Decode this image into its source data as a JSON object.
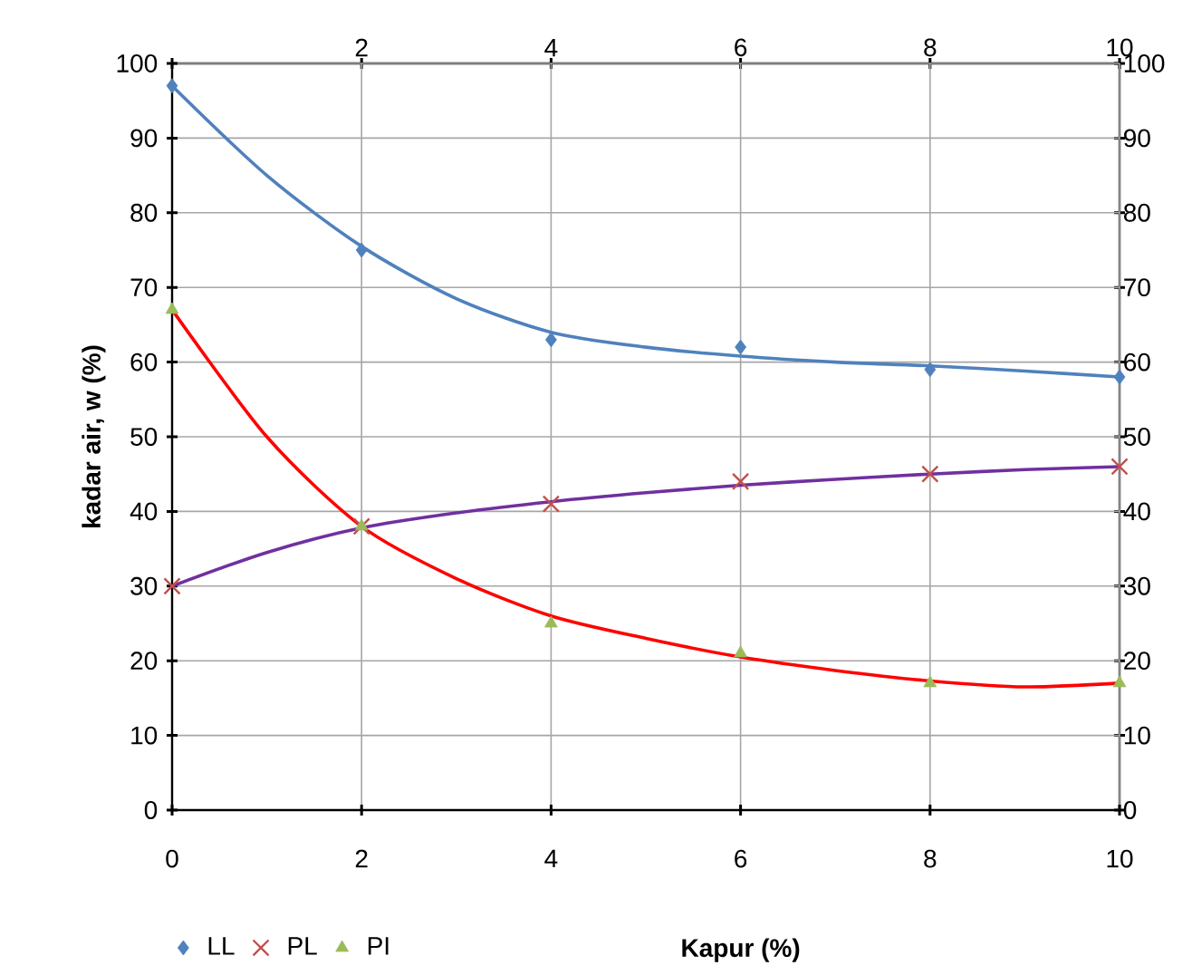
{
  "chart_data": {
    "type": "scatter",
    "xlabel": "Kapur (%)",
    "ylabel": "kadar air, w (%)",
    "xlim": [
      0,
      10
    ],
    "xticks": [
      0,
      2,
      4,
      6,
      8,
      10
    ],
    "x2lim": [
      0,
      10
    ],
    "x2ticks": [
      {
        "value": 0,
        "label": null
      },
      2,
      4,
      6,
      8,
      10
    ],
    "ylim": [
      0,
      100
    ],
    "yticks": [
      0,
      10,
      20,
      30,
      40,
      50,
      60,
      70,
      80,
      90,
      100
    ],
    "y2lim": [
      0,
      100
    ],
    "y2ticks": [
      0,
      10,
      20,
      30,
      40,
      50,
      60,
      70,
      80,
      90,
      100
    ],
    "grid": true,
    "legend": "bottom left",
    "series": [
      {
        "name": "LL",
        "marker": "diamond",
        "color": "#4f81bd",
        "x": [
          0,
          2,
          4,
          6,
          8,
          10
        ],
        "values": [
          97,
          75,
          63,
          62,
          59,
          58
        ]
      },
      {
        "name": "PL",
        "marker": "cross",
        "color": "#c0504d",
        "x": [
          0,
          2,
          4,
          6,
          8,
          10
        ],
        "values": [
          30,
          38,
          41,
          44,
          45,
          46
        ]
      },
      {
        "name": "PI",
        "marker": "triangle",
        "color": "#9bbb59",
        "x": [
          0,
          2,
          4,
          6,
          8,
          10
        ],
        "values": [
          67,
          38,
          25,
          21,
          17,
          17
        ]
      },
      {
        "type": "line",
        "marker": "none",
        "color": "#4f81bd",
        "x": [
          0,
          1,
          2,
          3,
          4,
          5,
          6,
          7,
          8,
          9,
          10
        ],
        "values": [
          97,
          85,
          75.5,
          68.5,
          64,
          62,
          60.8,
          60,
          59.5,
          58.8,
          58
        ]
      },
      {
        "type": "line",
        "marker": "none",
        "color": "#7030a0",
        "x": [
          0,
          1,
          2,
          3,
          4,
          5,
          6,
          7,
          8,
          9,
          10
        ],
        "values": [
          30,
          34.5,
          37.8,
          39.8,
          41.3,
          42.5,
          43.5,
          44.3,
          45,
          45.6,
          46
        ]
      },
      {
        "type": "line",
        "marker": "none",
        "color": "#ff0000",
        "x": [
          0,
          1,
          2,
          3,
          4,
          5,
          6,
          7,
          8,
          9,
          10
        ],
        "values": [
          67,
          50,
          38,
          31,
          26,
          23,
          20.5,
          18.7,
          17.3,
          16.5,
          17
        ]
      }
    ]
  }
}
